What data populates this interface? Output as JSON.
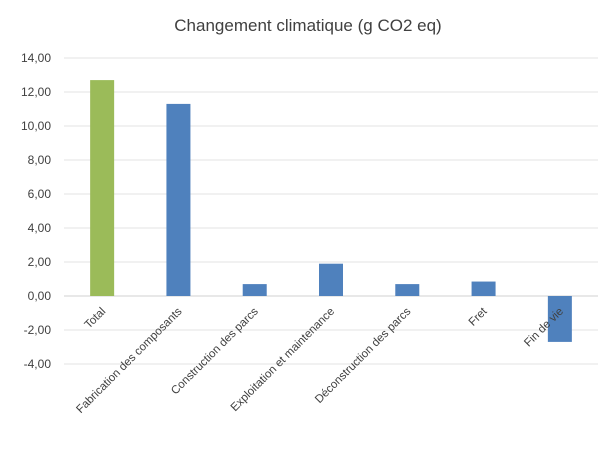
{
  "chart_data": {
    "type": "bar",
    "title": "Changement climatique (g CO2 eq)",
    "xlabel": "",
    "ylabel": "",
    "categories": [
      "Total",
      "Fabrication des composants",
      "Construction des parcs",
      "Exploitation et maintenance",
      "Déconstruction des parcs",
      "Fret",
      "Fin de vie"
    ],
    "values": [
      12.7,
      11.3,
      0.7,
      1.9,
      0.7,
      0.85,
      -2.7
    ],
    "bar_colors": [
      "#9bbb59",
      "#4f81bd",
      "#4f81bd",
      "#4f81bd",
      "#4f81bd",
      "#4f81bd",
      "#4f81bd"
    ],
    "ylim": [
      -4,
      14
    ],
    "yticks": [
      -4,
      -2,
      0,
      2,
      4,
      6,
      8,
      10,
      12,
      14
    ],
    "ytick_labels": [
      "-4,00",
      "-2,00",
      "0,00",
      "2,00",
      "4,00",
      "6,00",
      "8,00",
      "10,00",
      "12,00",
      "14,00"
    ],
    "grid": true,
    "legend": "none"
  }
}
